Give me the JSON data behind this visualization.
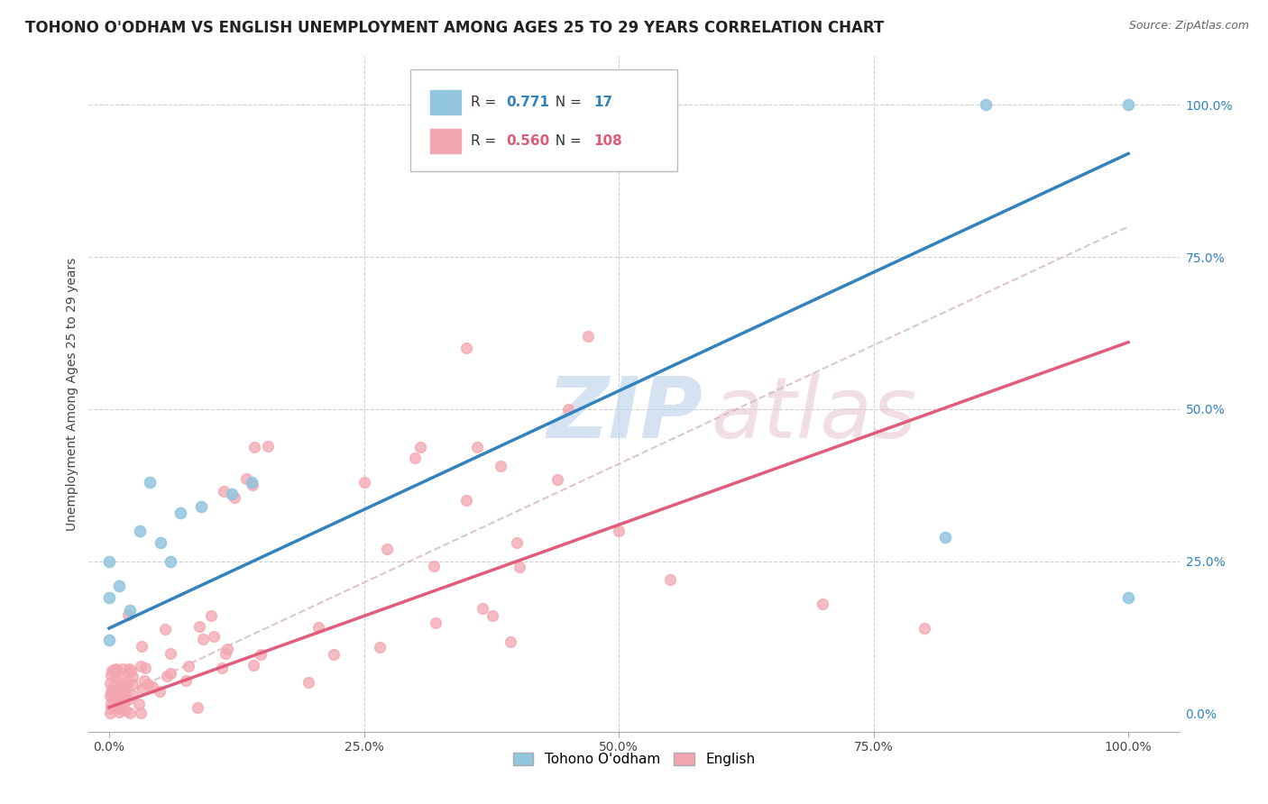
{
  "title": "TOHONO O'ODHAM VS ENGLISH UNEMPLOYMENT AMONG AGES 25 TO 29 YEARS CORRELATION CHART",
  "source": "Source: ZipAtlas.com",
  "ylabel": "Unemployment Among Ages 25 to 29 years",
  "xticklabels": [
    "0.0%",
    "",
    "25.0%",
    "",
    "50.0%",
    "",
    "75.0%",
    "",
    "100.0%"
  ],
  "xticks": [
    0,
    0.125,
    0.25,
    0.375,
    0.5,
    0.625,
    0.75,
    0.875,
    1.0
  ],
  "xticklabels_shown": [
    "0.0%",
    "25.0%",
    "50.0%",
    "75.0%",
    "100.0%"
  ],
  "xticks_shown": [
    0,
    0.25,
    0.5,
    0.75,
    1.0
  ],
  "yticklabels_right": [
    "100.0%",
    "75.0%",
    "50.0%",
    "25.0%",
    "0.0%"
  ],
  "yticks_right": [
    1.0,
    0.75,
    0.5,
    0.25,
    0.0
  ],
  "ylim": [
    -0.03,
    1.08
  ],
  "xlim": [
    -0.02,
    1.05
  ],
  "blue_R": 0.771,
  "blue_N": 17,
  "pink_R": 0.56,
  "pink_N": 108,
  "blue_scatter_color": "#92c5de",
  "pink_scatter_color": "#f4a6b0",
  "blue_line_color": "#3182bd",
  "pink_line_color": "#e05c7a",
  "dashed_line_color": "#d4b8c0",
  "grid_color": "#d0d0d0",
  "watermark_color": "#c8d8e8",
  "watermark_text": "ZIPatlas",
  "legend_label_blue": "Tohono O'odham",
  "legend_label_pink": "English",
  "blue_line_intercept": 0.14,
  "blue_line_slope": 0.78,
  "pink_line_intercept": 0.01,
  "pink_line_slope": 0.6,
  "dashed_intercept": 0.02,
  "dashed_slope": 0.78,
  "background_color": "#ffffff",
  "title_fontsize": 12,
  "axis_label_fontsize": 10,
  "tick_fontsize": 10,
  "blue_scatter_x": [
    0.0,
    0.0,
    0.01,
    0.02,
    0.03,
    0.04,
    0.05,
    0.06,
    0.07,
    0.09,
    0.12,
    0.14,
    0.82,
    0.86,
    1.0,
    1.0,
    0.0
  ],
  "blue_scatter_y": [
    0.19,
    0.25,
    0.21,
    0.17,
    0.3,
    0.38,
    0.28,
    0.25,
    0.33,
    0.34,
    0.36,
    0.38,
    0.29,
    1.0,
    1.0,
    0.19,
    0.12
  ]
}
